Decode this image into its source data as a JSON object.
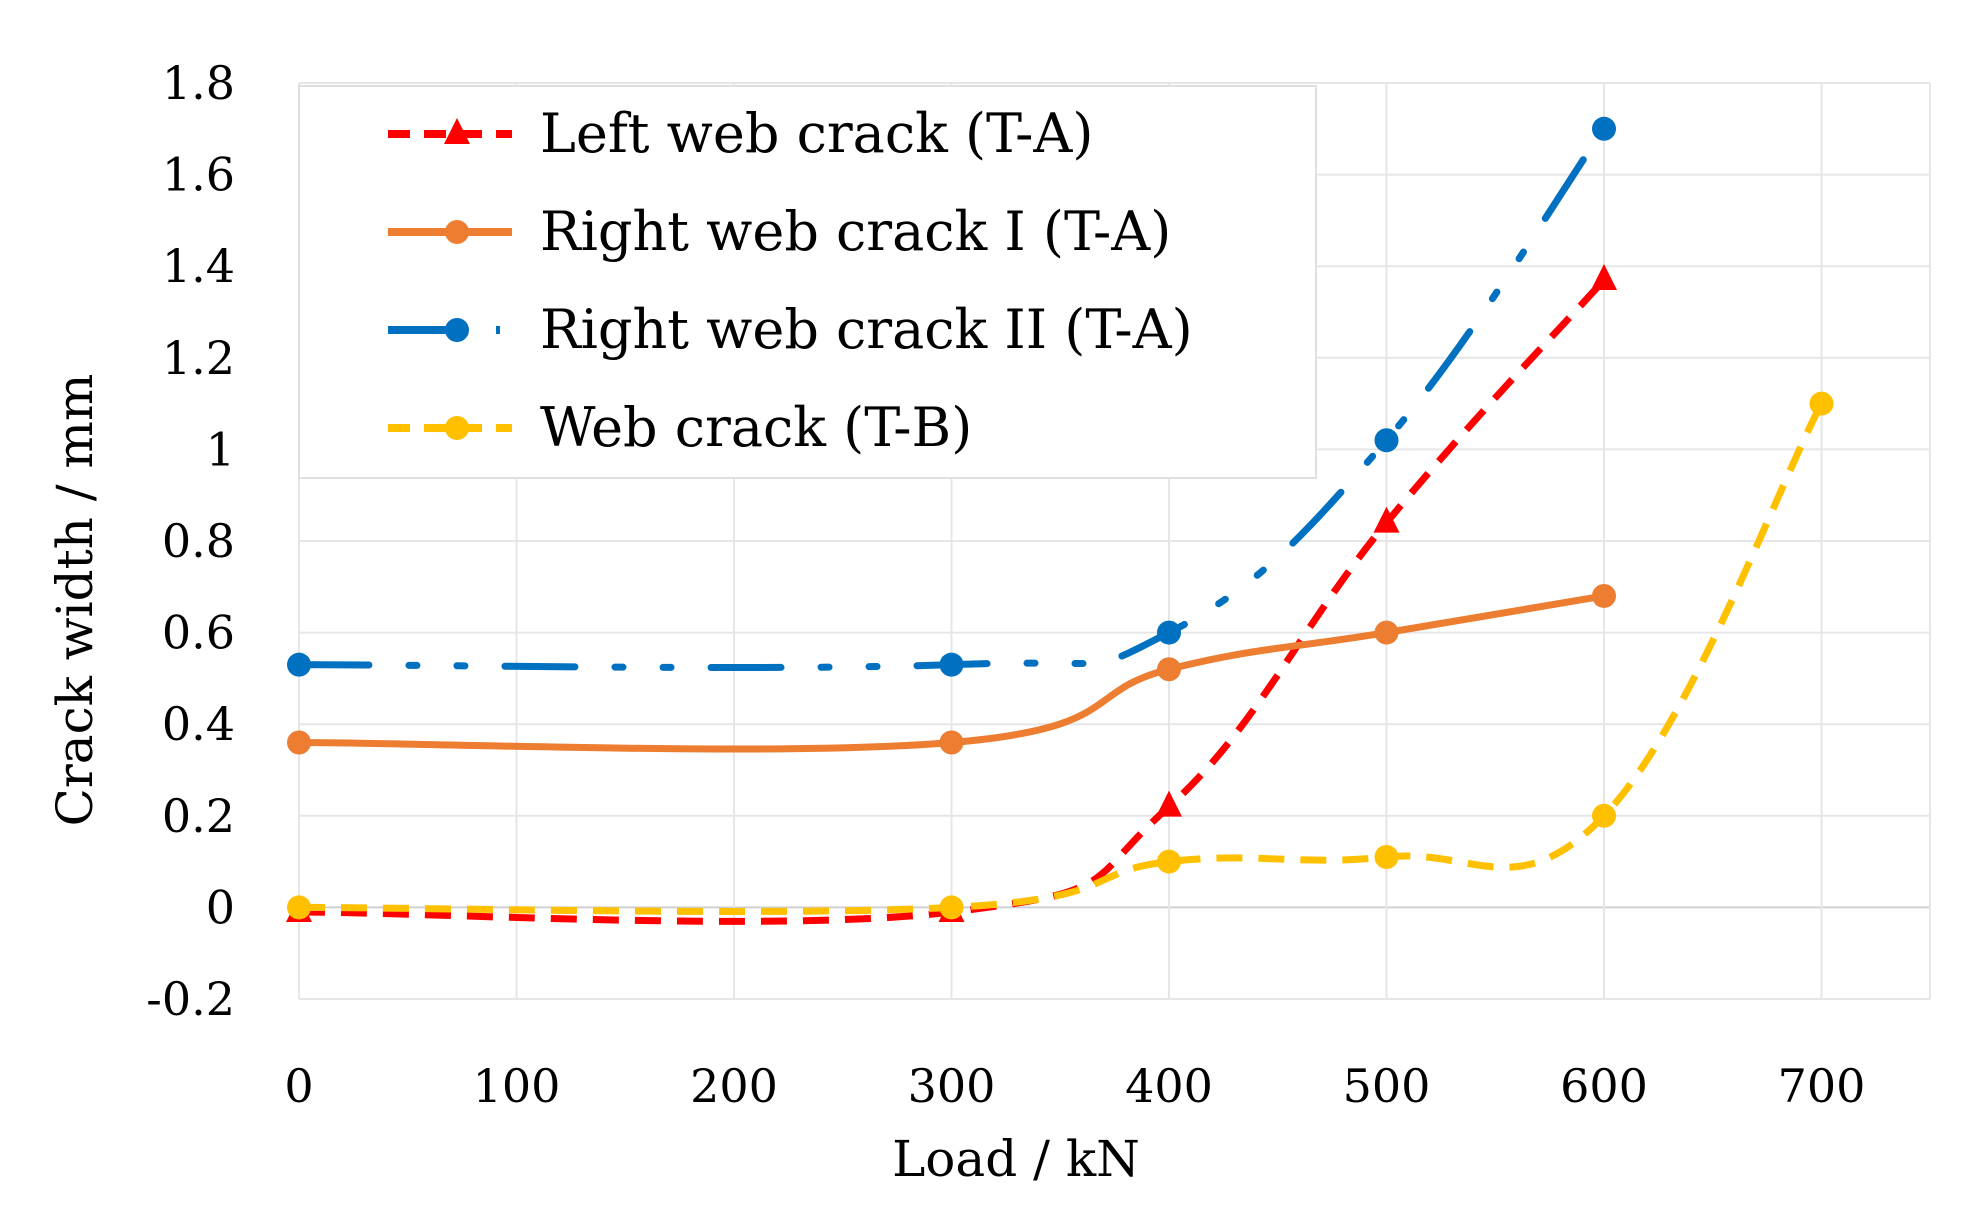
{
  "chart_data": {
    "type": "line",
    "title": "",
    "xlabel": "Load / kN",
    "ylabel": "Crack width / mm",
    "xlim": [
      0,
      750
    ],
    "ylim": [
      -0.2,
      1.8
    ],
    "xticks": [
      0,
      100,
      200,
      300,
      400,
      500,
      600,
      700
    ],
    "xtick_labels": [
      "0",
      "100",
      "200",
      "300",
      "400",
      "500",
      "600",
      "700"
    ],
    "yticks": [
      -0.2,
      0,
      0.2,
      0.4,
      0.6,
      0.8,
      1,
      1.2,
      1.4,
      1.6,
      1.8
    ],
    "ytick_labels": [
      "-0.2",
      "0",
      "0.2",
      "0.4",
      "0.6",
      "0.8",
      "1",
      "1.2",
      "1.4",
      "1.6",
      "1.8"
    ],
    "grid": true,
    "legend_position": "top-left",
    "series": [
      {
        "name": "Left web crack  (T-A)",
        "color": "#FF0000",
        "dash": "dash",
        "marker": "triangle",
        "x": [
          0,
          300,
          400,
          500,
          600
        ],
        "y": [
          -0.01,
          -0.01,
          0.22,
          0.84,
          1.37
        ]
      },
      {
        "name": "Right web crack I  (T-A)",
        "color": "#ED7D31",
        "dash": "solid",
        "marker": "circle",
        "x": [
          0,
          300,
          400,
          500,
          600
        ],
        "y": [
          0.36,
          0.36,
          0.52,
          0.6,
          0.68
        ]
      },
      {
        "name": "Right web crack II  (T-A)",
        "color": "#0070C0",
        "dash": "longdashdotdot",
        "marker": "circle",
        "x": [
          0,
          300,
          400,
          500,
          600
        ],
        "y": [
          0.53,
          0.53,
          0.6,
          1.02,
          1.7
        ]
      },
      {
        "name": "Web crack (T-B)",
        "color": "#FFC000",
        "dash": "dash",
        "marker": "circle",
        "x": [
          0,
          300,
          400,
          500,
          600,
          700
        ],
        "y": [
          0,
          0,
          0.1,
          0.11,
          0.2,
          1.1
        ]
      }
    ]
  }
}
